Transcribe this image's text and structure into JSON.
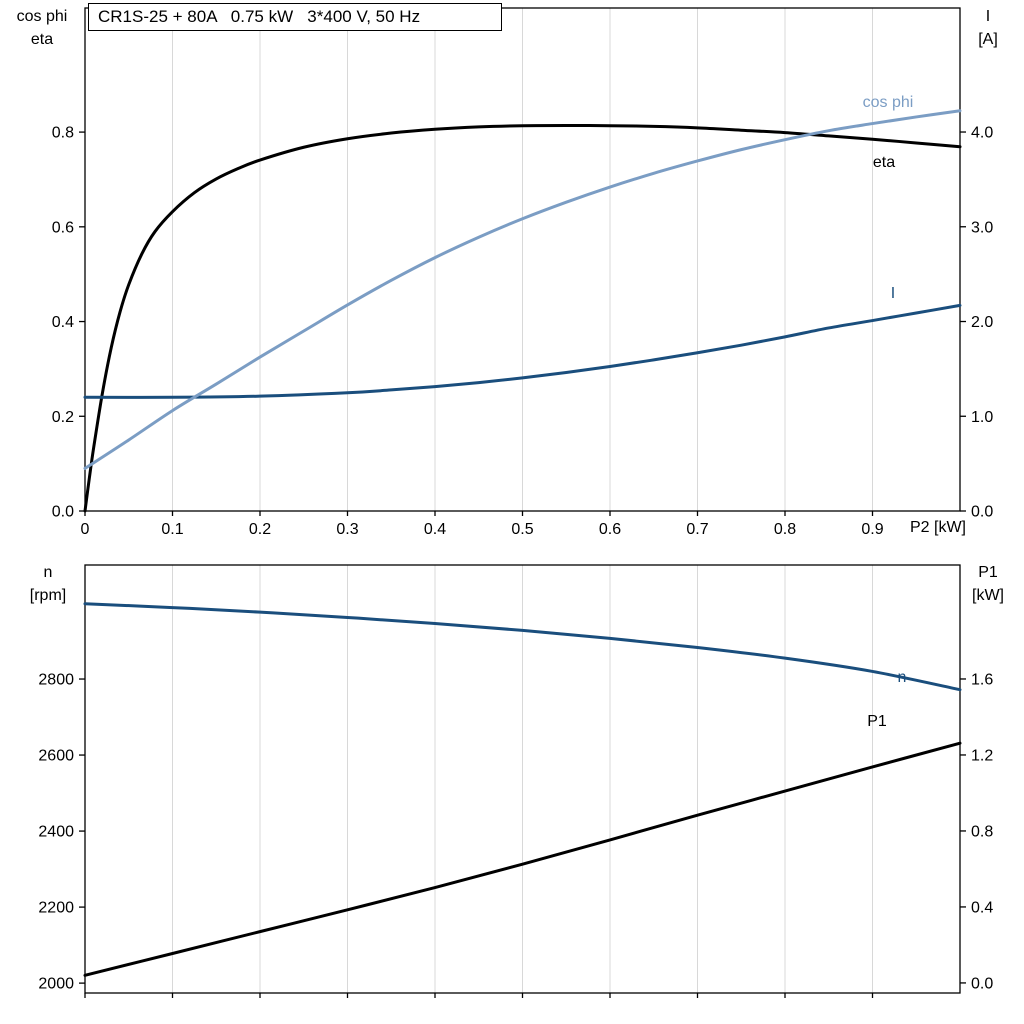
{
  "colors": {
    "eta": "#000000",
    "cos_phi": "#7b9dc4",
    "current": "#1a4e7d",
    "speed": "#1a4e7d",
    "p1": "#000000",
    "grid": "#d8d8d8",
    "frame": "#000000",
    "text": "#000000",
    "background": "#ffffff"
  },
  "chart_data": [
    {
      "type": "line",
      "title": "CR1S-25 + 80A   0.75 kW   3*400 V, 50 Hz",
      "x_axis": {
        "label": "P2 [kW]",
        "range": [
          0,
          1.0
        ],
        "show_tick_labels": true,
        "ticks": [
          {
            "v": 0,
            "label": "0"
          },
          {
            "v": 0.1,
            "label": "0.1"
          },
          {
            "v": 0.2,
            "label": "0.2"
          },
          {
            "v": 0.3,
            "label": "0.3"
          },
          {
            "v": 0.4,
            "label": "0.4"
          },
          {
            "v": 0.5,
            "label": "0.5"
          },
          {
            "v": 0.6,
            "label": "0.6"
          },
          {
            "v": 0.7,
            "label": "0.7"
          },
          {
            "v": 0.8,
            "label": "0.8"
          },
          {
            "v": 0.9,
            "label": "0.9"
          }
        ]
      },
      "left_axis": {
        "label_lines": [
          "cos phi",
          "eta"
        ],
        "range": [
          0,
          1.062
        ],
        "ticks": [
          {
            "v": 0,
            "label": "0.0"
          },
          {
            "v": 0.2,
            "label": "0.2"
          },
          {
            "v": 0.4,
            "label": "0.4"
          },
          {
            "v": 0.6,
            "label": "0.6"
          },
          {
            "v": 0.8,
            "label": "0.8"
          }
        ]
      },
      "right_axis": {
        "label_lines": [
          "I",
          "[A]"
        ],
        "range": [
          0,
          5.309
        ],
        "ticks": [
          {
            "v": 0,
            "label": "0.0"
          },
          {
            "v": 1,
            "label": "1.0"
          },
          {
            "v": 2,
            "label": "2.0"
          },
          {
            "v": 3,
            "label": "3.0"
          },
          {
            "v": 4,
            "label": "4.0"
          }
        ]
      },
      "series": [
        {
          "label": "eta",
          "axis": "left",
          "color": "eta",
          "points": [
            [
              0,
              0
            ],
            [
              0.005,
              0.07
            ],
            [
              0.01,
              0.135
            ],
            [
              0.02,
              0.25
            ],
            [
              0.03,
              0.345
            ],
            [
              0.04,
              0.42
            ],
            [
              0.05,
              0.478
            ],
            [
              0.065,
              0.543
            ],
            [
              0.08,
              0.59
            ],
            [
              0.1,
              0.632
            ],
            [
              0.125,
              0.672
            ],
            [
              0.15,
              0.701
            ],
            [
              0.175,
              0.723
            ],
            [
              0.2,
              0.741
            ],
            [
              0.25,
              0.768
            ],
            [
              0.3,
              0.786
            ],
            [
              0.35,
              0.798
            ],
            [
              0.4,
              0.806
            ],
            [
              0.45,
              0.811
            ],
            [
              0.5,
              0.8135
            ],
            [
              0.55,
              0.814
            ],
            [
              0.6,
              0.8135
            ],
            [
              0.65,
              0.812
            ],
            [
              0.7,
              0.809
            ],
            [
              0.75,
              0.804
            ],
            [
              0.8,
              0.799
            ],
            [
              0.85,
              0.792
            ],
            [
              0.9,
              0.785
            ],
            [
              0.95,
              0.777
            ],
            [
              1.0,
              0.769
            ]
          ]
        },
        {
          "label": "I",
          "axis": "right",
          "color": "current",
          "points": [
            [
              0,
              1.2
            ],
            [
              0.1,
              1.2
            ],
            [
              0.2,
              1.212
            ],
            [
              0.3,
              1.248
            ],
            [
              0.35,
              1.278
            ],
            [
              0.4,
              1.313
            ],
            [
              0.45,
              1.355
            ],
            [
              0.5,
              1.405
            ],
            [
              0.55,
              1.462
            ],
            [
              0.6,
              1.525
            ],
            [
              0.65,
              1.595
            ],
            [
              0.7,
              1.67
            ],
            [
              0.75,
              1.75
            ],
            [
              0.8,
              1.838
            ],
            [
              0.85,
              1.932
            ],
            [
              0.9,
              2.01
            ],
            [
              0.95,
              2.09
            ],
            [
              1.0,
              2.17
            ]
          ]
        },
        {
          "label": "cos phi",
          "axis": "left",
          "color": "cos_phi",
          "points": [
            [
              0,
              0.09
            ],
            [
              0.05,
              0.15
            ],
            [
              0.1,
              0.212
            ],
            [
              0.15,
              0.268
            ],
            [
              0.2,
              0.325
            ],
            [
              0.25,
              0.38
            ],
            [
              0.3,
              0.435
            ],
            [
              0.35,
              0.487
            ],
            [
              0.4,
              0.535
            ],
            [
              0.45,
              0.578
            ],
            [
              0.5,
              0.617
            ],
            [
              0.55,
              0.652
            ],
            [
              0.6,
              0.684
            ],
            [
              0.65,
              0.713
            ],
            [
              0.7,
              0.739
            ],
            [
              0.75,
              0.763
            ],
            [
              0.8,
              0.784
            ],
            [
              0.85,
              0.803
            ],
            [
              0.9,
              0.818
            ],
            [
              0.95,
              0.832
            ],
            [
              1.0,
              0.845
            ]
          ]
        }
      ]
    },
    {
      "type": "line",
      "title": "",
      "x_axis": {
        "label": "",
        "range": [
          0,
          1.0
        ],
        "show_tick_labels": false,
        "ticks": [
          {
            "v": 0,
            "label": ""
          },
          {
            "v": 0.1,
            "label": ""
          },
          {
            "v": 0.2,
            "label": ""
          },
          {
            "v": 0.3,
            "label": ""
          },
          {
            "v": 0.4,
            "label": ""
          },
          {
            "v": 0.5,
            "label": ""
          },
          {
            "v": 0.6,
            "label": ""
          },
          {
            "v": 0.7,
            "label": ""
          },
          {
            "v": 0.8,
            "label": ""
          },
          {
            "v": 0.9,
            "label": ""
          }
        ]
      },
      "left_axis": {
        "label_lines": [
          "n",
          "[rpm]"
        ],
        "range": [
          1974,
          3100
        ],
        "ticks": [
          {
            "v": 2000,
            "label": "2000"
          },
          {
            "v": 2200,
            "label": "2200"
          },
          {
            "v": 2400,
            "label": "2400"
          },
          {
            "v": 2600,
            "label": "2600"
          },
          {
            "v": 2800,
            "label": "2800"
          }
        ]
      },
      "right_axis": {
        "label_lines": [
          "P1",
          "[kW]"
        ],
        "range": [
          -0.053,
          2.2
        ],
        "ticks": [
          {
            "v": 0,
            "label": "0.0"
          },
          {
            "v": 0.4,
            "label": "0.4"
          },
          {
            "v": 0.8,
            "label": "0.8"
          },
          {
            "v": 1.2,
            "label": "1.2"
          },
          {
            "v": 1.6,
            "label": "1.6"
          }
        ]
      },
      "series": [
        {
          "label": "n",
          "axis": "left",
          "color": "speed",
          "points": [
            [
              0,
              2998
            ],
            [
              0.1,
              2988
            ],
            [
              0.2,
              2976
            ],
            [
              0.3,
              2962
            ],
            [
              0.4,
              2946
            ],
            [
              0.5,
              2928
            ],
            [
              0.6,
              2907
            ],
            [
              0.7,
              2883
            ],
            [
              0.8,
              2855
            ],
            [
              0.9,
              2820
            ],
            [
              1.0,
              2772
            ]
          ]
        },
        {
          "label": "P1",
          "axis": "right",
          "color": "p1",
          "points": [
            [
              0,
              0.04
            ],
            [
              0.1,
              0.155
            ],
            [
              0.2,
              0.27
            ],
            [
              0.3,
              0.385
            ],
            [
              0.4,
              0.502
            ],
            [
              0.5,
              0.625
            ],
            [
              0.6,
              0.753
            ],
            [
              0.7,
              0.883
            ],
            [
              0.8,
              1.01
            ],
            [
              0.9,
              1.137
            ],
            [
              1.0,
              1.262
            ]
          ]
        }
      ]
    }
  ]
}
